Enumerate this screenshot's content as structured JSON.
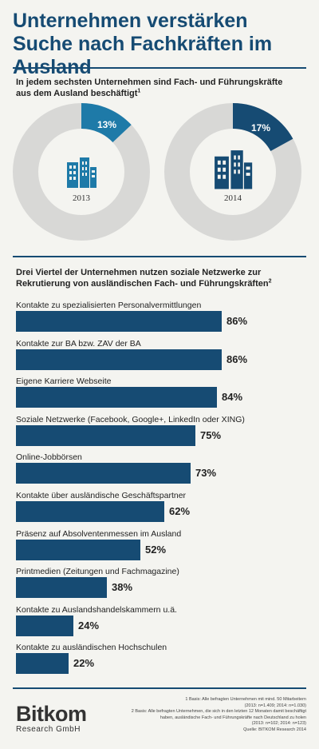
{
  "title": "Unternehmen verstärken Suche nach Fachkräften im Ausland",
  "section1": {
    "subtitle": "In jedem sechsten Unternehmen sind Fach- und Führungskräfte aus dem Ausland beschäftigt",
    "footnote_mark": "1"
  },
  "section2": {
    "subtitle": "Drei Viertel der Unternehmen nutzen soziale Netzwerke zur Rekrutierung von ausländischen Fach- und Führungskräften",
    "footnote_mark": "2"
  },
  "donuts": [
    {
      "year": "2013",
      "label": "13%",
      "icon": "office-buildings-icon"
    },
    {
      "year": "2014",
      "label": "17%",
      "icon": "office-buildings-icon"
    }
  ],
  "colors": {
    "title": "#164b73",
    "bar": "#164b73",
    "donut_2013": "#1e7aa8",
    "donut_2014": "#164b73",
    "ring": "#d8d8d6",
    "background": "#f4f4f0"
  },
  "chart_data": [
    {
      "type": "pie",
      "categories": [
        "2013"
      ],
      "values": [
        13
      ]
    },
    {
      "type": "pie",
      "categories": [
        "2014"
      ],
      "values": [
        17
      ]
    },
    {
      "type": "bar",
      "orientation": "horizontal",
      "categories": [
        "Kontakte zu spezialisierten Personalvermittlungen",
        "Kontakte zur BA bzw. ZAV der BA",
        "Eigene Karriere Webseite",
        "Soziale Netzwerke (Facebook, Google+, LinkedIn oder XING)",
        "Online-Jobbörsen",
        "Kontakte über ausländische Geschäftspartner",
        "Präsenz auf Absolventenmessen im Ausland",
        "Printmedien (Zeitungen und Fachmagazine)",
        "Kontakte zu Auslandshandelskammern u.ä.",
        "Kontakte zu ausländischen Hochschulen"
      ],
      "values": [
        86,
        86,
        84,
        75,
        73,
        62,
        52,
        38,
        24,
        22
      ],
      "value_labels": [
        "86%",
        "86%",
        "84%",
        "75%",
        "73%",
        "62%",
        "52%",
        "38%",
        "24%",
        "22%"
      ],
      "xlim": [
        0,
        100
      ]
    }
  ],
  "footnotes": [
    "1 Basis: Alle befragten Unternehmen mit mind. 50 Mitarbeitern",
    "(2013: n=1.409; 2014: n=1.030)",
    "2 Basis: Alle befragten Unternehmen, die sich in den letzten 12 Monaten damit beschäftigt",
    "haben, ausländische Fach- und Führungskräfte nach Deutschland zu holen",
    "(2013: n=102; 2014: n=123)",
    "Quelle: BITKOM Research 2014"
  ],
  "logo": {
    "main": "Bitkom",
    "sub": "Research GmbH"
  }
}
